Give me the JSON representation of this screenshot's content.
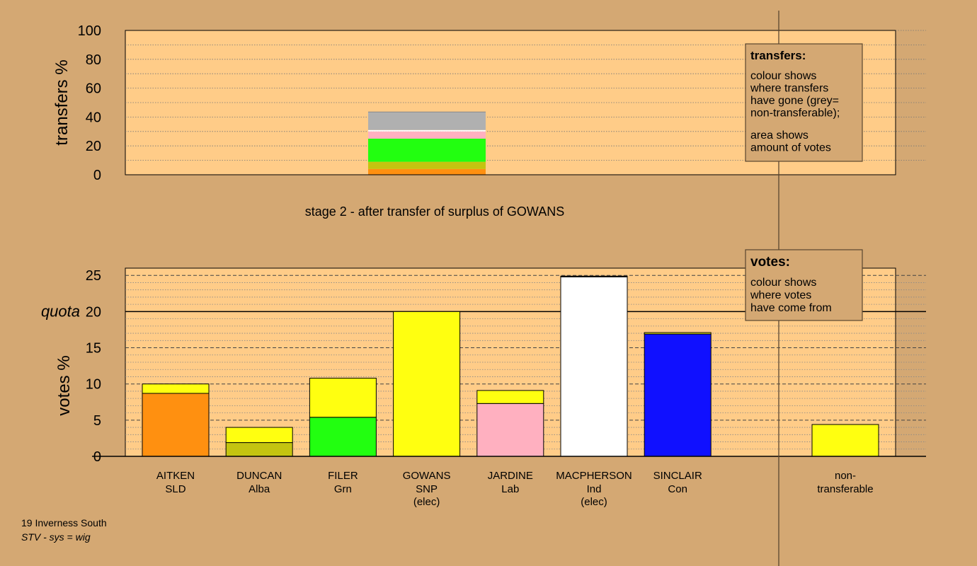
{
  "chart_data": [
    {
      "type": "bar",
      "ylabel": "transfers %",
      "ylim": [
        0,
        100
      ],
      "yticks": [
        0,
        20,
        40,
        60,
        80,
        100
      ],
      "subtitle": "stage 2 - after transfer of surplus of GOWANS",
      "legend": {
        "title": "transfers:",
        "lines1": [
          "colour shows",
          "where transfers",
          "have gone (grey=",
          "non-transferable);"
        ],
        "lines2": [
          "area shows",
          "amount of votes"
        ]
      },
      "stack": [
        {
          "color": "#ff9010",
          "value": 4
        },
        {
          "color": "#c4c410",
          "value": 5
        },
        {
          "color": "#22ff10",
          "value": 16
        },
        {
          "color": "#ffb0c0",
          "value": 5
        },
        {
          "color": "#ffffff",
          "value": 1
        },
        {
          "color": "#b0b0b0",
          "value": 12.5
        }
      ]
    },
    {
      "type": "bar",
      "ylabel": "votes %",
      "ylim": [
        0,
        26
      ],
      "yticks": [
        0,
        5,
        10,
        15,
        20,
        25
      ],
      "quota": {
        "label": "quota",
        "value": 20
      },
      "legend": {
        "title": "votes:",
        "lines": [
          "colour shows",
          "where votes",
          "have come from"
        ]
      },
      "bars": [
        {
          "name": "AITKEN",
          "party": "SLD",
          "note": "",
          "segments": [
            {
              "color": "#ff9010",
              "value": 8.7
            },
            {
              "color": "#ffff10",
              "value": 1.3
            }
          ]
        },
        {
          "name": "DUNCAN",
          "party": "Alba",
          "note": "",
          "segments": [
            {
              "color": "#c4c410",
              "value": 1.9
            },
            {
              "color": "#ffff10",
              "value": 2.1
            }
          ]
        },
        {
          "name": "FILER",
          "party": "Grn",
          "note": "",
          "segments": [
            {
              "color": "#22ff10",
              "value": 5.4
            },
            {
              "color": "#ffff10",
              "value": 5.4
            }
          ]
        },
        {
          "name": "GOWANS",
          "party": "SNP",
          "note": "(elec)",
          "segments": [
            {
              "color": "#ffff10",
              "value": 20
            }
          ]
        },
        {
          "name": "JARDINE",
          "party": "Lab",
          "note": "",
          "segments": [
            {
              "color": "#ffb0c0",
              "value": 7.3
            },
            {
              "color": "#ffff10",
              "value": 1.8
            }
          ]
        },
        {
          "name": "MACPHERSON",
          "party": "Ind",
          "note": "(elec)",
          "segments": [
            {
              "color": "#ffffff",
              "value": 24.8
            },
            {
              "color": "#ffff10",
              "value": 0.1
            }
          ]
        },
        {
          "name": "SINCLAIR",
          "party": "Con",
          "note": "",
          "segments": [
            {
              "color": "#1010ff",
              "value": 16.9
            },
            {
              "color": "#ffff10",
              "value": 0.2
            }
          ]
        }
      ],
      "nontransferable": {
        "label1": "non-",
        "label2": "transferable",
        "segments": [
          {
            "color": "#ffff10",
            "value": 4.4
          }
        ]
      }
    }
  ],
  "footer": {
    "line1": "19 Inverness South",
    "line2": "STV - sys = wig"
  }
}
